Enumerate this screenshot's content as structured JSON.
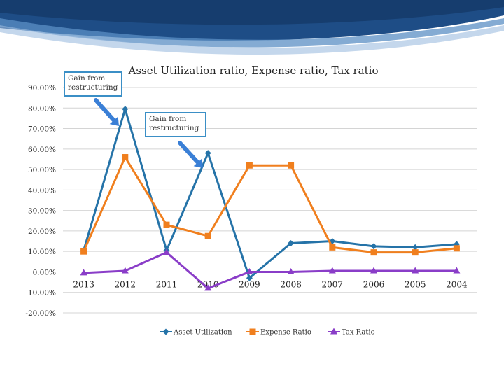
{
  "chart_data": {
    "type": "line",
    "title": "Asset Utilization ratio, Expense ratio, Tax ratio",
    "categories": [
      "2013",
      "2012",
      "2011",
      "2010",
      "2009",
      "2008",
      "2007",
      "2006",
      "2005",
      "2004"
    ],
    "y_ticks": [
      "90.00%",
      "80.00%",
      "70.00%",
      "60.00%",
      "50.00%",
      "40.00%",
      "30.00%",
      "20.00%",
      "10.00%",
      "0.00%",
      "-10.00%",
      "-20.00%"
    ],
    "ylim": [
      -20,
      90
    ],
    "grid": true,
    "legend_position": "bottom",
    "series": [
      {
        "name": "Asset Utilization",
        "marker": "diamond",
        "color": "#2573a8",
        "values": [
          10.5,
          79.5,
          10.5,
          58.0,
          -3.0,
          14.0,
          15.0,
          12.5,
          12.0,
          13.5
        ]
      },
      {
        "name": "Expense Ratio",
        "marker": "square",
        "color": "#f07f1e",
        "values": [
          10.0,
          56.0,
          23.0,
          17.5,
          52.0,
          52.0,
          12.0,
          9.5,
          9.5,
          11.5
        ]
      },
      {
        "name": "Tax Ratio",
        "marker": "triangle",
        "color": "#8a3dc8",
        "values": [
          -0.5,
          0.5,
          9.5,
          -8.0,
          0.0,
          0.0,
          0.5,
          0.5,
          0.5,
          0.5
        ]
      }
    ],
    "annotations": [
      {
        "text": "Gain from\nrestructuring",
        "target": "2012"
      },
      {
        "text": "Gain from\nrestructuring",
        "target": "2010"
      }
    ]
  }
}
